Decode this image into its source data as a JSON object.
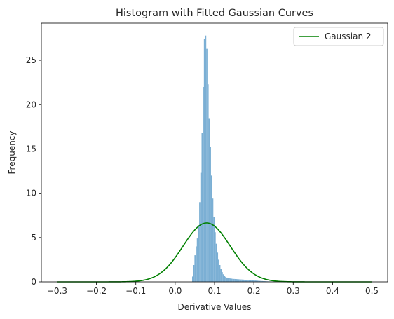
{
  "chart_data": {
    "type": "bar",
    "title": "Histogram with Fitted Gaussian Curves",
    "xlabel": "Derivative Values",
    "ylabel": "Frequency",
    "xlim": [
      -0.34,
      0.54
    ],
    "ylim": [
      0,
      29.2
    ],
    "xticks": [
      -0.3,
      -0.2,
      -0.1,
      0.0,
      0.1,
      0.2,
      0.3,
      0.4,
      0.5
    ],
    "xtick_labels": [
      "−0.3",
      "−0.2",
      "−0.1",
      "0.0",
      "0.1",
      "0.2",
      "0.3",
      "0.4",
      "0.5"
    ],
    "yticks": [
      0,
      5,
      10,
      15,
      20,
      25
    ],
    "ytick_labels": [
      "0",
      "5",
      "10",
      "15",
      "20",
      "25"
    ],
    "grid": false,
    "histogram": {
      "color": "#7bafd4",
      "bin_width": 0.003,
      "bins": [
        [
          0.043,
          0.6
        ],
        [
          0.046,
          1.9
        ],
        [
          0.049,
          3.0
        ],
        [
          0.052,
          4.0
        ],
        [
          0.055,
          4.9
        ],
        [
          0.058,
          6.4
        ],
        [
          0.061,
          9.0
        ],
        [
          0.064,
          12.3
        ],
        [
          0.067,
          16.8
        ],
        [
          0.07,
          22.0
        ],
        [
          0.073,
          27.4
        ],
        [
          0.076,
          27.8
        ],
        [
          0.079,
          26.3
        ],
        [
          0.082,
          22.3
        ],
        [
          0.085,
          18.4
        ],
        [
          0.088,
          15.2
        ],
        [
          0.091,
          12.0
        ],
        [
          0.094,
          9.4
        ],
        [
          0.097,
          7.3
        ],
        [
          0.1,
          5.6
        ],
        [
          0.103,
          4.3
        ],
        [
          0.106,
          3.3
        ],
        [
          0.109,
          2.5
        ],
        [
          0.112,
          1.9
        ],
        [
          0.115,
          1.45
        ],
        [
          0.118,
          1.1
        ],
        [
          0.121,
          0.85
        ],
        [
          0.124,
          0.68
        ],
        [
          0.127,
          0.56
        ],
        [
          0.13,
          0.48
        ],
        [
          0.133,
          0.43
        ],
        [
          0.136,
          0.4
        ],
        [
          0.139,
          0.38
        ],
        [
          0.142,
          0.36
        ],
        [
          0.145,
          0.34
        ],
        [
          0.148,
          0.33
        ],
        [
          0.151,
          0.32
        ],
        [
          0.154,
          0.31
        ],
        [
          0.157,
          0.3
        ],
        [
          0.16,
          0.29
        ],
        [
          0.163,
          0.28
        ],
        [
          0.166,
          0.27
        ],
        [
          0.169,
          0.26
        ],
        [
          0.172,
          0.25
        ],
        [
          0.175,
          0.24
        ],
        [
          0.178,
          0.23
        ],
        [
          0.181,
          0.22
        ],
        [
          0.184,
          0.21
        ],
        [
          0.187,
          0.2
        ],
        [
          0.19,
          0.19
        ],
        [
          0.193,
          0.18
        ],
        [
          0.196,
          0.17
        ],
        [
          0.199,
          0.16
        ],
        [
          0.202,
          0.15
        ],
        [
          0.205,
          0.14
        ],
        [
          0.208,
          0.13
        ],
        [
          0.211,
          0.12
        ],
        [
          0.214,
          0.11
        ],
        [
          0.217,
          0.1
        ],
        [
          0.22,
          0.09
        ],
        [
          0.223,
          0.08
        ],
        [
          0.226,
          0.075
        ],
        [
          0.229,
          0.07
        ],
        [
          0.232,
          0.06
        ],
        [
          0.235,
          0.05
        ],
        [
          0.238,
          0.045
        ],
        [
          0.241,
          0.04
        ],
        [
          0.244,
          0.035
        ],
        [
          0.247,
          0.03
        ],
        [
          0.25,
          0.03
        ]
      ]
    },
    "series": [
      {
        "name": "Gaussian 2",
        "type": "line",
        "color": "#008000",
        "gaussian": {
          "amplitude": 6.65,
          "mean": 0.08,
          "sigma": 0.06
        },
        "x_range": [
          -0.3,
          0.5
        ]
      }
    ],
    "legend": {
      "position": "top-right"
    }
  }
}
